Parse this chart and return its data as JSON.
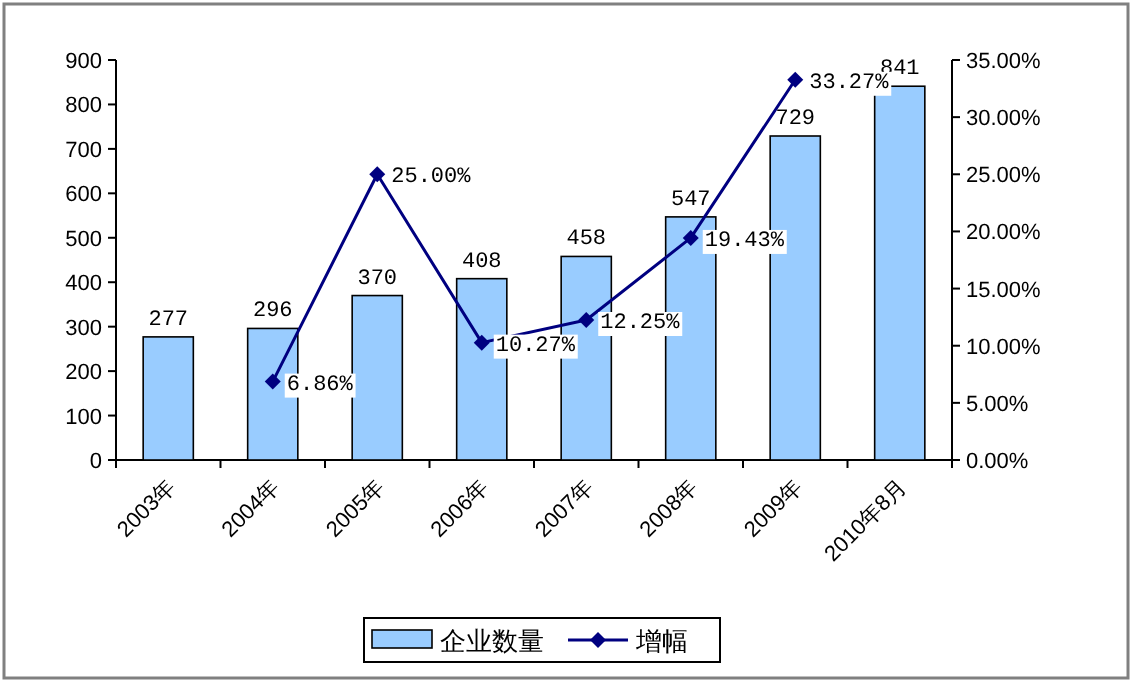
{
  "chart_data": {
    "type": "bar",
    "categories": [
      "2003年",
      "2004年",
      "2005年",
      "2006年",
      "2007年",
      "2008年",
      "2009年",
      "2010年8月"
    ],
    "series": [
      {
        "name": "企业数量",
        "color": "#99ccff",
        "values": [
          277,
          296,
          370,
          408,
          458,
          547,
          729,
          841
        ],
        "data_labels": true
      },
      {
        "name": "增幅",
        "type": "line",
        "axis": "y2",
        "color": "#000080",
        "marker": "diamond",
        "values": [
          null,
          6.86,
          25.0,
          10.27,
          12.25,
          19.43,
          33.27,
          null
        ],
        "value_labels": [
          null,
          "6.86%",
          "25.00%",
          "10.27%",
          "12.25%",
          "19.43%",
          "33.27%",
          null
        ]
      }
    ],
    "ylim": [
      0,
      900
    ],
    "yticks": [
      0,
      100,
      200,
      300,
      400,
      500,
      600,
      700,
      800,
      900
    ],
    "y2lim": [
      0,
      35
    ],
    "y2ticks": [
      {
        "value": 0,
        "label": "0.00%"
      },
      {
        "value": 5,
        "label": "5.00%"
      },
      {
        "value": 10,
        "label": "10.00%"
      },
      {
        "value": 15,
        "label": "15.00%"
      },
      {
        "value": 20,
        "label": "20.00%"
      },
      {
        "value": 25,
        "label": "25.00%"
      },
      {
        "value": 30,
        "label": "30.00%"
      },
      {
        "value": 35,
        "label": "35.00%"
      }
    ],
    "grid": false,
    "legend": "bottom"
  }
}
